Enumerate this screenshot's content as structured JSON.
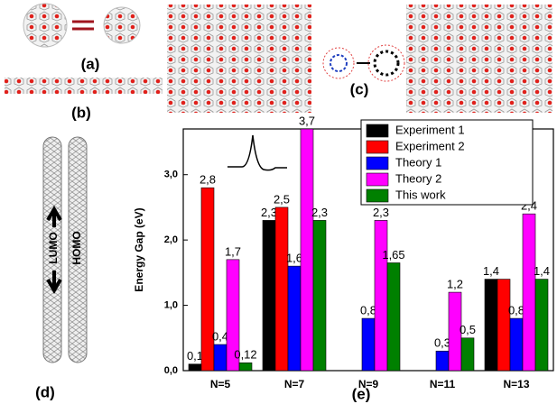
{
  "chart_data": {
    "type": "bar",
    "ylabel": "Energy  Gap (eV)",
    "categories": [
      "N=5",
      "N=7",
      "N=9",
      "N=11",
      "N=13"
    ],
    "series": [
      {
        "name": "Experiment  1",
        "color": "#000000",
        "values": [
          0.1,
          2.3,
          null,
          null,
          1.4
        ],
        "value_labels": [
          "0,1",
          "2,3",
          null,
          null,
          "1,4"
        ]
      },
      {
        "name": "Experiment  2",
        "color": "#ff0000",
        "values": [
          2.8,
          2.5,
          null,
          null,
          1.4
        ],
        "value_labels": [
          "2,8",
          "2,5",
          null,
          null,
          null
        ]
      },
      {
        "name": "Theory 1",
        "color": "#0000ff",
        "values": [
          0.4,
          1.6,
          0.8,
          0.3,
          0.8
        ],
        "value_labels": [
          "0,4",
          "1,6",
          "0,8",
          "0,3",
          "0,8"
        ]
      },
      {
        "name": "Theory 2",
        "color": "#ff00ff",
        "values": [
          1.7,
          3.7,
          2.3,
          1.2,
          2.4
        ],
        "value_labels": [
          "1,7",
          "3,7",
          "2,3",
          "1,2",
          "2,4"
        ]
      },
      {
        "name": "This work",
        "color": "#008000",
        "values": [
          0.12,
          2.3,
          1.65,
          0.5,
          1.4
        ],
        "value_labels": [
          "0,12",
          "2,3",
          "1,65",
          "0,5",
          "1,4"
        ]
      }
    ],
    "ylim": [
      0,
      3.7
    ],
    "yticks": [
      {
        "value": 0,
        "label": "0,0"
      },
      {
        "value": 1,
        "label": "1,0"
      },
      {
        "value": 2,
        "label": "2,0"
      },
      {
        "value": 3,
        "label": "3,0"
      }
    ]
  },
  "panels": [
    "(a)",
    "(b)",
    "(c)",
    "(d)",
    "(e)"
  ],
  "orbitals": [
    "LUMO",
    "HOMO"
  ]
}
